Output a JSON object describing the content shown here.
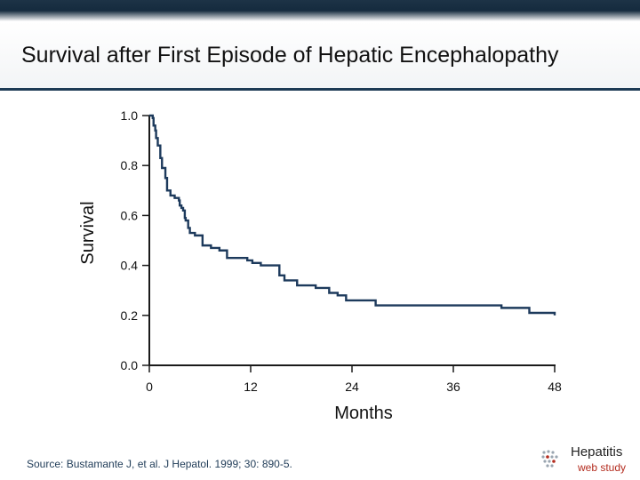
{
  "slide": {
    "title": "Survival after First Episode of Hepatic Encephalopathy",
    "source": "Source: Bustamante J, et al. J Hepatol. 1999; 30: 890-5."
  },
  "logo": {
    "main": "Hepatitis",
    "sub": "web study"
  },
  "colors": {
    "line": "#1d3a5c",
    "axis": "#1a1a1a",
    "header_band": "#152b3e"
  },
  "chart_data": {
    "type": "line",
    "step": true,
    "title": "",
    "xlabel": "Months",
    "ylabel": "Survival",
    "xlim": [
      0,
      48
    ],
    "ylim": [
      0,
      1.0
    ],
    "x_ticks": [
      0,
      12,
      24,
      36,
      48
    ],
    "x_tick_labels": [
      "0",
      "12",
      "24",
      "36",
      "48"
    ],
    "y_ticks": [
      0.0,
      0.2,
      0.4,
      0.6,
      0.8,
      1.0
    ],
    "y_tick_labels": [
      "0.0",
      "0.2",
      "0.4",
      "0.6",
      "0.8",
      "1.0"
    ],
    "grid": false,
    "series": [
      {
        "name": "Survival",
        "x": [
          0,
          0.4,
          0.5,
          0.7,
          0.8,
          1.0,
          1.3,
          1.5,
          1.9,
          2.1,
          2.5,
          3.0,
          3.5,
          3.6,
          3.8,
          4.0,
          4.2,
          4.3,
          4.6,
          4.8,
          5.4,
          6.3,
          7.3,
          8.3,
          9.2,
          11.6,
          12.2,
          13.2,
          15.4,
          16.0,
          17.5,
          19.7,
          21.3,
          22.3,
          23.3,
          26.8,
          41.7,
          45.0,
          48.0
        ],
        "y": [
          1.0,
          0.99,
          0.96,
          0.94,
          0.91,
          0.88,
          0.83,
          0.79,
          0.75,
          0.7,
          0.68,
          0.67,
          0.66,
          0.64,
          0.63,
          0.62,
          0.59,
          0.58,
          0.55,
          0.53,
          0.52,
          0.48,
          0.47,
          0.46,
          0.43,
          0.42,
          0.41,
          0.4,
          0.36,
          0.34,
          0.32,
          0.31,
          0.29,
          0.28,
          0.26,
          0.24,
          0.23,
          0.21,
          0.2
        ]
      }
    ]
  }
}
